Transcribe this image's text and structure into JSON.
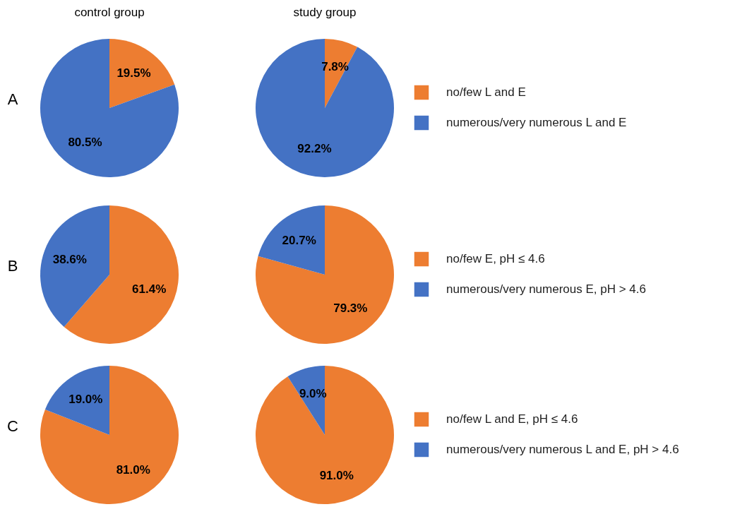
{
  "chart_data": [
    {
      "type": "pie",
      "title": "control group",
      "ylabel": "A",
      "categories": [
        null,
        null
      ],
      "values": [
        19.5,
        80.5
      ],
      "colors": [
        "#ed7d31",
        "#4472c4"
      ],
      "value_labels": [
        "19.5%",
        "80.5%"
      ]
    },
    {
      "type": "pie",
      "title": "study group",
      "categories": [
        "no/few L and E",
        "numerous/very numerous L and E"
      ],
      "values": [
        7.8,
        92.2
      ],
      "colors": [
        "#ed7d31",
        "#4472c4"
      ],
      "value_labels": [
        "7.8%",
        "92.2%"
      ],
      "legend": "right"
    },
    {
      "type": "pie",
      "ylabel": "B",
      "categories": [
        null,
        null
      ],
      "values": [
        61.4,
        38.6
      ],
      "colors": [
        "#ed7d31",
        "#4472c4"
      ],
      "value_labels": [
        "61.4%",
        "38.6%"
      ]
    },
    {
      "type": "pie",
      "categories": [
        "no/few E, pH ≤ 4.6",
        "numerous/very numerous E, pH > 4.6"
      ],
      "values": [
        79.3,
        20.7
      ],
      "colors": [
        "#ed7d31",
        "#4472c4"
      ],
      "value_labels": [
        "79.3%",
        "20.7%"
      ],
      "legend": "right"
    },
    {
      "type": "pie",
      "ylabel": "C",
      "categories": [
        null,
        null
      ],
      "values": [
        81.0,
        19.0
      ],
      "colors": [
        "#ed7d31",
        "#4472c4"
      ],
      "value_labels": [
        "81.0%",
        "19.0%"
      ]
    },
    {
      "type": "pie",
      "categories": [
        "no/few L and E, pH ≤ 4.6",
        "numerous/very numerous L and E, pH > 4.6"
      ],
      "values": [
        91.0,
        9.0
      ],
      "colors": [
        "#ed7d31",
        "#4472c4"
      ],
      "value_labels": [
        "91.0%",
        "9.0%"
      ],
      "legend": "right"
    }
  ]
}
